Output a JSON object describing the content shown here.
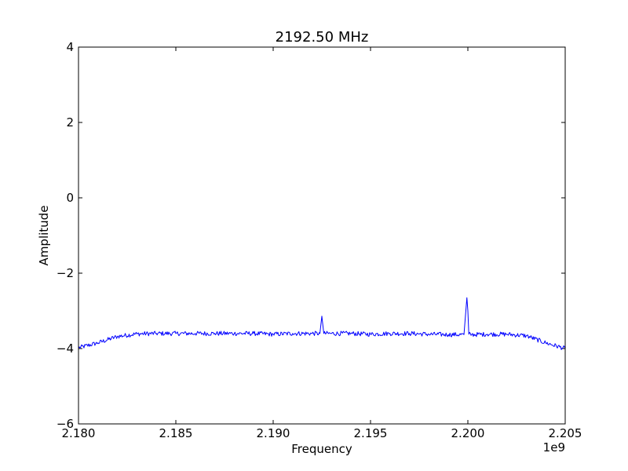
{
  "chart_data": {
    "type": "line",
    "title": "2192.50 MHz",
    "xlabel": "Frequency",
    "ylabel": "Amplitude",
    "x_offset_label": "1e9",
    "xlim": [
      2.18,
      2.205
    ],
    "ylim": [
      -6,
      4
    ],
    "xticks": [
      2.18,
      2.185,
      2.19,
      2.195,
      2.2,
      2.205
    ],
    "xtick_labels": [
      "2.180",
      "2.185",
      "2.190",
      "2.195",
      "2.200",
      "2.205"
    ],
    "yticks": [
      -6,
      -4,
      -2,
      0,
      2,
      4
    ],
    "ytick_labels": [
      "−6",
      "−4",
      "−2",
      "0",
      "2",
      "4"
    ],
    "grid": false,
    "line_color": "#0000ff",
    "x_unit_multiplier": 1000000000,
    "series": [
      {
        "x": [
          2.18,
          2.181,
          2.182,
          2.183,
          2.184,
          2.185,
          2.186,
          2.187,
          2.188,
          2.189,
          2.19,
          2.191,
          2.192,
          2.1924,
          2.1925,
          2.1926,
          2.193,
          2.194,
          2.195,
          2.196,
          2.197,
          2.198,
          2.199,
          2.1998,
          2.19995,
          2.2,
          2.20005,
          2.2002,
          2.201,
          2.202,
          2.203,
          2.204,
          2.205
        ],
        "y": [
          -3.98,
          -3.85,
          -3.68,
          -3.61,
          -3.6,
          -3.6,
          -3.6,
          -3.6,
          -3.6,
          -3.6,
          -3.62,
          -3.6,
          -3.6,
          -3.6,
          -3.14,
          -3.6,
          -3.6,
          -3.6,
          -3.62,
          -3.6,
          -3.6,
          -3.62,
          -3.63,
          -3.63,
          -2.65,
          -3.0,
          -3.62,
          -3.63,
          -3.62,
          -3.62,
          -3.66,
          -3.85,
          -4.0
        ]
      }
    ]
  }
}
